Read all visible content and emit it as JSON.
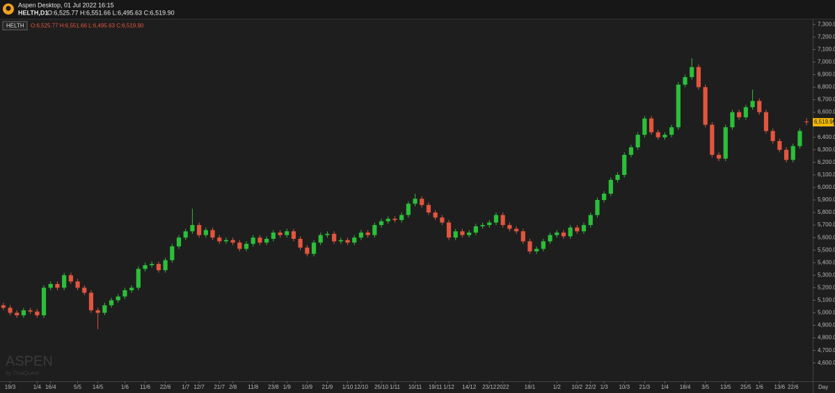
{
  "header": {
    "app_title": "Aspen Desktop, 01 Jul 2022 16:15",
    "symbol": "HELTH,D1",
    "ohlc": "O:6,525.77 H:6,551.66 L:6,495.63 C:6,519.90"
  },
  "chart_data": {
    "type": "candlestick",
    "symbol": "HELTH",
    "ohlc_text": "O:6,525.77 H:6,551.66 L:6,495.63 C:6,519.90",
    "watermark": "ASPEN",
    "watermark_sub": "by ThaiQuest",
    "x_axis_unit": "Day",
    "categories": [
      null,
      "19/3",
      null,
      null,
      null,
      "1/4",
      null,
      "16/4",
      null,
      null,
      null,
      "5/5",
      null,
      null,
      "14/5",
      null,
      null,
      null,
      "1/6",
      null,
      null,
      "11/6",
      null,
      null,
      "22/6",
      null,
      null,
      "1/7",
      null,
      "12/7",
      null,
      null,
      "21/7",
      null,
      "2/8",
      null,
      null,
      "11/8",
      null,
      null,
      "23/8",
      null,
      "1/9",
      null,
      null,
      "10/9",
      null,
      null,
      "21/9",
      null,
      null,
      "1/10",
      null,
      "12/10",
      null,
      null,
      "25/10",
      null,
      "1/11",
      null,
      null,
      "10/11",
      null,
      null,
      "19/11",
      null,
      "1/12",
      null,
      null,
      "14/12",
      null,
      null,
      "23/12",
      null,
      "2022",
      null,
      null,
      null,
      "18/1",
      null,
      null,
      null,
      "1/2",
      null,
      null,
      "10/2",
      null,
      "22/2",
      null,
      "1/3",
      null,
      null,
      "10/3",
      null,
      null,
      "21/3",
      null,
      null,
      "1/4",
      null,
      null,
      "18/4",
      null,
      null,
      "3/5",
      null,
      null,
      "13/5",
      null,
      null,
      "25/5",
      null,
      "1/6",
      null,
      null,
      "13/6",
      null,
      "22/6",
      null,
      null
    ],
    "open": [
      5060,
      5040,
      5000,
      4980,
      5020,
      5010,
      4980,
      5200,
      5230,
      5200,
      5300,
      5250,
      5200,
      5160,
      5020,
      5000,
      5060,
      5100,
      5130,
      5180,
      5200,
      5350,
      5380,
      5390,
      5340,
      5420,
      5530,
      5600,
      5650,
      5700,
      5620,
      5660,
      5600,
      5570,
      5580,
      5560,
      5510,
      5550,
      5600,
      5560,
      5590,
      5640,
      5620,
      5650,
      5590,
      5520,
      5470,
      5560,
      5620,
      5630,
      5570,
      5580,
      5560,
      5600,
      5640,
      5620,
      5700,
      5730,
      5750,
      5740,
      5780,
      5870,
      5910,
      5860,
      5800,
      5760,
      5720,
      5600,
      5650,
      5620,
      5640,
      5690,
      5700,
      5720,
      5780,
      5700,
      5670,
      5650,
      5570,
      5490,
      5510,
      5570,
      5620,
      5640,
      5610,
      5680,
      5650,
      5700,
      5780,
      5900,
      5950,
      6060,
      6100,
      6260,
      6320,
      6420,
      6550,
      6440,
      6400,
      6420,
      6480,
      6820,
      6880,
      6960,
      6800,
      6500,
      6260,
      6230,
      6480,
      6600,
      6560,
      6640,
      6690,
      6600,
      6450,
      6370,
      6300,
      6220,
      6330,
      6525.77
    ],
    "high": [
      5080,
      5060,
      5020,
      5040,
      5040,
      5030,
      5220,
      5250,
      5250,
      5320,
      5320,
      5270,
      5220,
      5180,
      5040,
      5080,
      5120,
      5150,
      5200,
      5220,
      5370,
      5400,
      5410,
      5410,
      5440,
      5550,
      5620,
      5670,
      5830,
      5720,
      5680,
      5680,
      5620,
      5600,
      5600,
      5580,
      5570,
      5620,
      5620,
      5610,
      5660,
      5660,
      5670,
      5670,
      5610,
      5540,
      5580,
      5640,
      5650,
      5650,
      5600,
      5600,
      5620,
      5660,
      5660,
      5720,
      5750,
      5770,
      5770,
      5800,
      5890,
      5950,
      5930,
      5880,
      5820,
      5780,
      5740,
      5670,
      5670,
      5660,
      5710,
      5720,
      5740,
      5800,
      5800,
      5720,
      5690,
      5670,
      5590,
      5530,
      5590,
      5640,
      5660,
      5660,
      5700,
      5700,
      5720,
      5800,
      5920,
      5970,
      6080,
      6120,
      6280,
      6340,
      6440,
      6570,
      6570,
      6460,
      6440,
      6500,
      6840,
      6900,
      7030,
      6980,
      6820,
      6520,
      6280,
      6500,
      6620,
      6620,
      6660,
      6780,
      6710,
      6620,
      6470,
      6390,
      6320,
      6350,
      6470,
      6551.66
    ],
    "low": [
      5020,
      4980,
      4960,
      4960,
      4990,
      4960,
      4960,
      5180,
      5180,
      5180,
      5230,
      5180,
      5140,
      5000,
      4870,
      4980,
      5040,
      5080,
      5110,
      5160,
      5180,
      5330,
      5360,
      5320,
      5320,
      5400,
      5510,
      5580,
      5630,
      5600,
      5600,
      5580,
      5550,
      5550,
      5540,
      5490,
      5490,
      5530,
      5540,
      5540,
      5570,
      5600,
      5600,
      5570,
      5500,
      5450,
      5450,
      5540,
      5600,
      5550,
      5550,
      5540,
      5540,
      5580,
      5600,
      5600,
      5680,
      5710,
      5720,
      5720,
      5760,
      5850,
      5840,
      5780,
      5740,
      5700,
      5580,
      5580,
      5600,
      5600,
      5620,
      5670,
      5680,
      5700,
      5680,
      5650,
      5630,
      5550,
      5470,
      5470,
      5490,
      5550,
      5600,
      5590,
      5590,
      5630,
      5630,
      5680,
      5760,
      5880,
      5930,
      6040,
      6080,
      6240,
      6300,
      6400,
      6420,
      6380,
      6380,
      6400,
      6460,
      6800,
      6860,
      6780,
      6480,
      6240,
      6210,
      6210,
      6460,
      6540,
      6540,
      6620,
      6580,
      6430,
      6350,
      6280,
      6200,
      6200,
      6310,
      6495.63
    ],
    "close": [
      5040,
      5000,
      4980,
      5020,
      5010,
      4980,
      5200,
      5230,
      5200,
      5300,
      5250,
      5200,
      5160,
      5020,
      5000,
      5060,
      5100,
      5130,
      5180,
      5200,
      5350,
      5380,
      5390,
      5340,
      5420,
      5530,
      5600,
      5650,
      5700,
      5620,
      5660,
      5600,
      5570,
      5580,
      5560,
      5510,
      5550,
      5600,
      5560,
      5590,
      5640,
      5620,
      5650,
      5590,
      5520,
      5470,
      5560,
      5620,
      5630,
      5570,
      5580,
      5560,
      5600,
      5640,
      5620,
      5700,
      5730,
      5750,
      5740,
      5780,
      5870,
      5910,
      5860,
      5800,
      5760,
      5720,
      5600,
      5650,
      5620,
      5640,
      5690,
      5700,
      5720,
      5780,
      5700,
      5670,
      5650,
      5570,
      5490,
      5510,
      5570,
      5620,
      5640,
      5610,
      5680,
      5650,
      5700,
      5780,
      5900,
      5950,
      6060,
      6100,
      6260,
      6320,
      6420,
      6550,
      6440,
      6400,
      6420,
      6480,
      6820,
      6880,
      6960,
      6800,
      6500,
      6260,
      6230,
      6480,
      6600,
      6560,
      6640,
      6690,
      6600,
      6450,
      6370,
      6300,
      6220,
      6330,
      6450,
      6519.9
    ],
    "up_color": "#2bbf3a",
    "down_color": "#e2553f",
    "ylim": [
      4460,
      7340
    ],
    "yticks": [
      {
        "value": 4600,
        "label": "4,600.00"
      },
      {
        "value": 4700,
        "label": "4,700.00"
      },
      {
        "value": 4800,
        "label": "4,800.00"
      },
      {
        "value": 4900,
        "label": "4,900.00"
      },
      {
        "value": 5000,
        "label": "5,000.00"
      },
      {
        "value": 5100,
        "label": "5,100.00"
      },
      {
        "value": 5200,
        "label": "5,200.00"
      },
      {
        "value": 5300,
        "label": "5,300.00"
      },
      {
        "value": 5400,
        "label": "5,400.00"
      },
      {
        "value": 5500,
        "label": "5,500.00"
      },
      {
        "value": 5600,
        "label": "5,600.00"
      },
      {
        "value": 5700,
        "label": "5,700.00"
      },
      {
        "value": 5800,
        "label": "5,800.00"
      },
      {
        "value": 5900,
        "label": "5,900.00"
      },
      {
        "value": 6000,
        "label": "6,000.00"
      },
      {
        "value": 6100,
        "label": "6,100.00"
      },
      {
        "value": 6200,
        "label": "6,200.00"
      },
      {
        "value": 6300,
        "label": "6,300.00"
      },
      {
        "value": 6400,
        "label": "6,400.00"
      },
      {
        "value": 6500,
        "label": "6,500.00"
      },
      {
        "value": 6600,
        "label": "6,600.00"
      },
      {
        "value": 6700,
        "label": "6,700.00"
      },
      {
        "value": 6800,
        "label": "6,800.00"
      },
      {
        "value": 6900,
        "label": "6,900.00"
      },
      {
        "value": 7000,
        "label": "7,000.00"
      },
      {
        "value": 7100,
        "label": "7,100.00"
      },
      {
        "value": 7200,
        "label": "7,200.00"
      },
      {
        "value": 7300,
        "label": "7,300.00"
      }
    ],
    "last_price": {
      "value": 6519.9,
      "label": "6,519.90"
    },
    "last_price_color": "#f2b705"
  }
}
